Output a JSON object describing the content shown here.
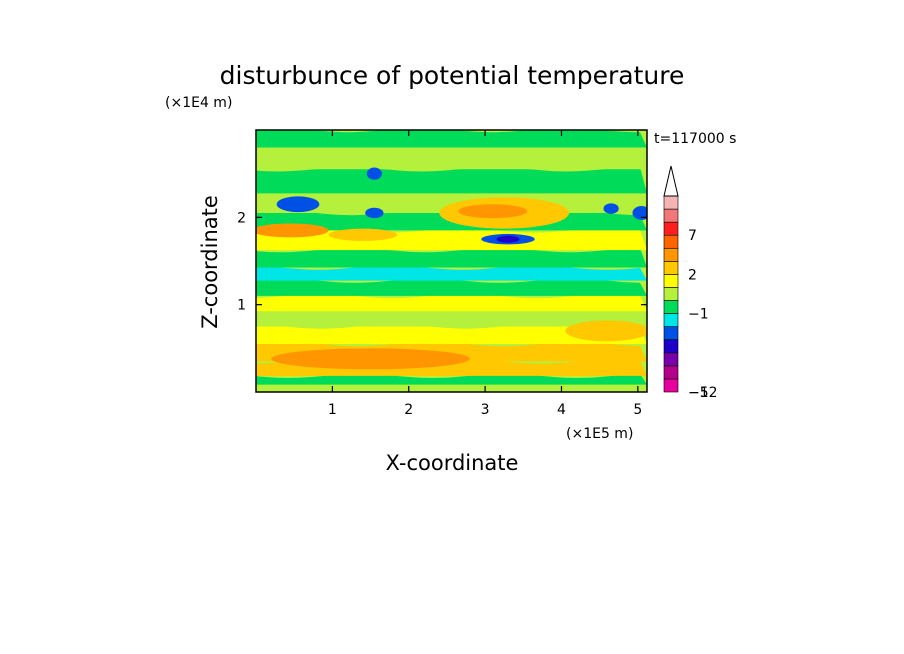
{
  "chart_data": {
    "type": "heatmap",
    "title": "disturbunce of potential temperature",
    "time_label": "t=117000 s",
    "xlabel": "X-coordinate",
    "ylabel": "Z-coordinate",
    "x_unit": "(×1E5 m)",
    "y_unit": "(×1E4 m)",
    "xlim": [
      0,
      5.12
    ],
    "ylim": [
      0,
      3.0
    ],
    "x_ticks": [
      1,
      2,
      3,
      4,
      5
    ],
    "y_ticks": [
      1,
      2
    ],
    "colorbar": {
      "levels": [
        {
          "lo": -12,
          "hi": -10,
          "color": "#e6009e"
        },
        {
          "lo": -10,
          "hi": -8,
          "color": "#b4008c"
        },
        {
          "lo": -8,
          "hi": -6,
          "color": "#7800aa"
        },
        {
          "lo": -6,
          "hi": -4,
          "color": "#1e00c8"
        },
        {
          "lo": -4,
          "hi": -2,
          "color": "#0050e6"
        },
        {
          "lo": -2,
          "hi": -1,
          "color": "#00e6e6"
        },
        {
          "lo": -1,
          "hi": 0,
          "color": "#00dc5a"
        },
        {
          "lo": 0,
          "hi": 1,
          "color": "#b4f03c"
        },
        {
          "lo": 1,
          "hi": 2,
          "color": "#ffff00"
        },
        {
          "lo": 2,
          "hi": 3,
          "color": "#ffc800"
        },
        {
          "lo": 3,
          "hi": 5,
          "color": "#ff9600"
        },
        {
          "lo": 5,
          "hi": 7,
          "color": "#ff6400"
        },
        {
          "lo": 7,
          "hi": 9,
          "color": "#ff1e1e"
        },
        {
          "lo": 9,
          "hi": 11,
          "color": "#f07878"
        },
        {
          "lo": 11,
          "hi": 13,
          "color": "#f5b4b4"
        }
      ],
      "tick_labels": [
        "7",
        "2",
        "−1",
        "−5",
        "−12"
      ],
      "extend_top": true
    },
    "bands": [
      {
        "z": 0.05,
        "value": 0.5
      },
      {
        "z": 0.12,
        "value": -0.5
      },
      {
        "z": 0.25,
        "value": 2.5
      },
      {
        "z": 0.45,
        "value": 2.5
      },
      {
        "z": 0.65,
        "value": 1.5
      },
      {
        "z": 0.85,
        "value": 0.5
      },
      {
        "z": 1.0,
        "value": 1.5
      },
      {
        "z": 1.2,
        "value": -0.5
      },
      {
        "z": 1.35,
        "value": -1.5
      },
      {
        "z": 1.5,
        "value": -0.5
      },
      {
        "z": 1.75,
        "value": 1.5
      },
      {
        "z": 1.95,
        "value": -0.5
      },
      {
        "z": 2.15,
        "value": 0.5
      },
      {
        "z": 2.4,
        "value": -0.5
      },
      {
        "z": 2.7,
        "value": 0.5
      },
      {
        "z": 2.9,
        "value": -0.5
      }
    ],
    "features": [
      {
        "x": 1.5,
        "z": 0.38,
        "rx": 1.3,
        "rz": 0.12,
        "value": 4
      },
      {
        "x": 3.25,
        "z": 2.05,
        "rx": 0.85,
        "rz": 0.18,
        "value": 2.5
      },
      {
        "x": 3.1,
        "z": 2.07,
        "rx": 0.45,
        "rz": 0.08,
        "value": 4
      },
      {
        "x": 3.3,
        "z": 1.75,
        "rx": 0.35,
        "rz": 0.06,
        "value": -3
      },
      {
        "x": 3.3,
        "z": 1.75,
        "rx": 0.15,
        "rz": 0.04,
        "value": -5
      },
      {
        "x": 0.55,
        "z": 2.15,
        "rx": 0.28,
        "rz": 0.09,
        "value": -3
      },
      {
        "x": 1.55,
        "z": 2.05,
        "rx": 0.12,
        "rz": 0.06,
        "value": -3
      },
      {
        "x": 1.55,
        "z": 2.5,
        "rx": 0.1,
        "rz": 0.07,
        "value": -3
      },
      {
        "x": 4.65,
        "z": 2.1,
        "rx": 0.1,
        "rz": 0.06,
        "value": -3
      },
      {
        "x": 5.05,
        "z": 2.05,
        "rx": 0.12,
        "rz": 0.08,
        "value": -4
      },
      {
        "x": 0.45,
        "z": 1.85,
        "rx": 0.5,
        "rz": 0.08,
        "value": 3.5
      },
      {
        "x": 1.4,
        "z": 1.8,
        "rx": 0.45,
        "rz": 0.07,
        "value": 2.5
      },
      {
        "x": 4.6,
        "z": 0.7,
        "rx": 0.55,
        "rz": 0.12,
        "value": 2.5
      }
    ]
  }
}
